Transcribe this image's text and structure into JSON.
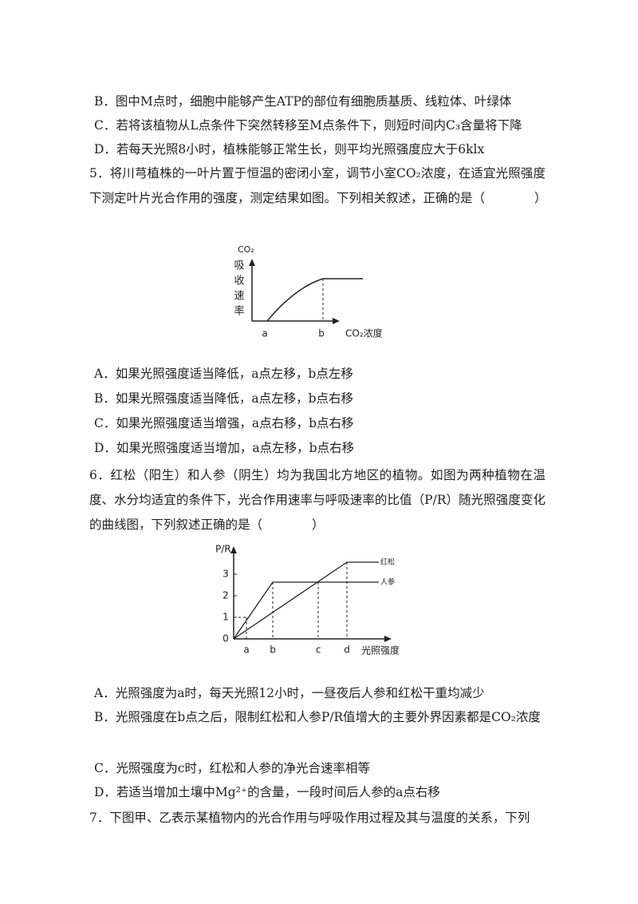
{
  "lines": {
    "q4_b": "B．图中M点时，细胞中能够产生ATP的部位有细胞质基质、线粒体、叶绿体",
    "q4_c": "C．若将该植物从L点条件下突然转移至M点条件下，则短时间内C₃含量将下降",
    "q4_d": "D．若每天光照8小时，植株能够正常生长，则平均光照强度应大于6klx"
  },
  "q5": {
    "stem": "5．将川芎植株的一叶片置于恒温的密闭小室，调节小室CO₂浓度，在适宜光照强度下测定叶片光合作用的强度，测定结果如图。下列相关叙述，正确的是（　　　　）",
    "figure": {
      "y_label_top": "CO₂",
      "y_label": [
        "吸",
        "收",
        "速",
        "率"
      ],
      "point_a": "a",
      "point_b": "b",
      "x_label": "CO₂浓度"
    },
    "options": [
      "A．如果光照强度适当降低，a点左移，b点左移",
      "B．如果光照强度适当降低，a点左移，b点右移",
      "C．如果光照强度适当增强，a点右移，b点右移",
      "D．如果光照强度适当增加，a点左移，b点右移"
    ]
  },
  "q6": {
    "stem": "6．红松（阳生）和人参（阴生）均为我国北方地区的植物。如图为两种植物在温度、水分均适宜的条件下，光合作用速率与呼吸速率的比值（P/R）随光照强度变化的曲线图，下列叙述正确的是（　　　　）",
    "figure": {
      "y_label": "P/R",
      "y_ticks": [
        "3",
        "2",
        "1",
        "0"
      ],
      "x_points": [
        "a",
        "b",
        "c",
        "d"
      ],
      "x_label": "光照强度",
      "curve_1": "红松",
      "curve_2": "人参"
    },
    "options": [
      "A．光照强度为a时，每天光照12小时，一昼夜后人参和红松干重均减少",
      "B．光照强度在b点之后，限制红松和人参P/R值增大的主要外界因素都是CO₂浓度",
      "C．光照强度为c时，红松和人参的净光合速率相等",
      "D．若适当增加土壤中Mg²⁺的含量，一段时间后人参的a点右移"
    ]
  },
  "q7": {
    "stem": "7．下图甲、乙表示某植物内的光合作用与呼吸作用过程及其与温度的关系，下列"
  }
}
